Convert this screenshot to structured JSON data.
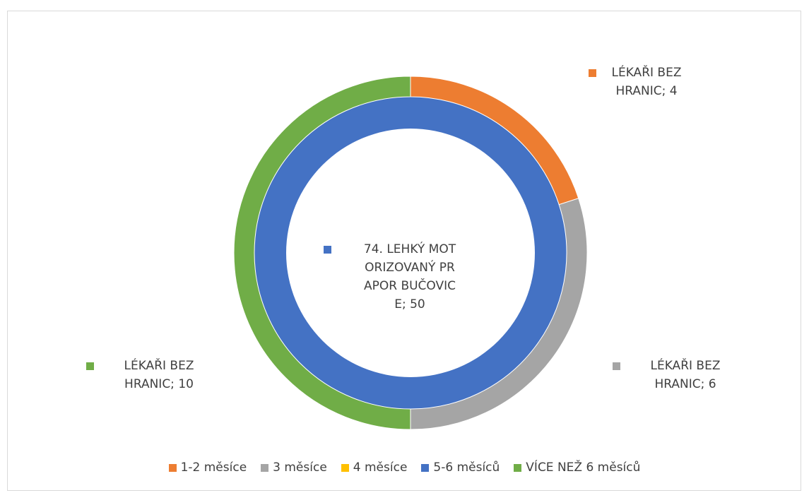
{
  "chart_data": {
    "type": "doughnut",
    "categories": [
      "1-2 měsíce",
      "3 měsíce",
      "4 měsíce",
      "5-6 měsíců",
      "VÍCE NEŽ 6 měsíců"
    ],
    "colors": [
      "#ed7d31",
      "#a5a5a5",
      "#ffc000",
      "#4472c4",
      "#70ad47"
    ],
    "series": [
      {
        "name": "74. LEHKÝ MOTORIZOVANÝ PRAPOR BUČOVICE",
        "values": [
          0,
          0,
          0,
          50,
          0
        ],
        "value_labels": [
          null,
          null,
          null,
          "74. LEHKÝ MOTORIZOVANÝ PRAPOR BUČOVICE; 50",
          null
        ]
      },
      {
        "name": "LÉKAŘI BEZ HRANIC",
        "values": [
          4,
          6,
          0,
          0,
          10
        ],
        "value_labels": [
          "LÉKAŘI BEZ HRANIC; 4",
          "LÉKAŘI BEZ HRANIC; 6",
          null,
          null,
          "LÉKAŘI BEZ HRANIC; 10"
        ]
      }
    ],
    "legend": "bottom"
  }
}
